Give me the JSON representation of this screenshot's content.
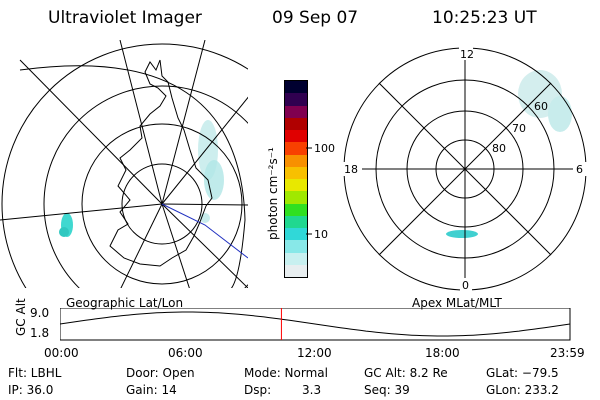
{
  "header": {
    "instrument": "Ultraviolet Imager",
    "date": "09 Sep 07",
    "time": "10:25:23 UT"
  },
  "left_panel": {
    "label": "Geographic Lat/Lon"
  },
  "right_panel": {
    "label": "Apex MLat/MLT",
    "mlt_labels": {
      "top": "12",
      "bottom": "0",
      "left": "18",
      "right": "6"
    },
    "lat_labels": [
      "60",
      "70",
      "80"
    ]
  },
  "colorbar": {
    "unit_label": "photon cm⁻²s⁻¹",
    "ticks": [
      "100",
      "10"
    ],
    "colors": [
      "#e8eef0",
      "#c8f0f0",
      "#88e8e8",
      "#30d8d8",
      "#20d890",
      "#30e020",
      "#a0e800",
      "#e8e800",
      "#f8c000",
      "#f89000",
      "#f84000",
      "#e00000",
      "#b00000",
      "#800050",
      "#300050",
      "#000030"
    ]
  },
  "timeline": {
    "axis_label": "GC Alt",
    "y_ticks": [
      "9.0",
      "1.8"
    ],
    "x_ticks": [
      "00:00",
      "06:00",
      "12:00",
      "18:00",
      "23:59"
    ],
    "current_marker_hours": 10.42,
    "marker_color": "#ff0000"
  },
  "info": {
    "filter": "Flt: LBHL",
    "ip": "IP: 36.0",
    "door": "Door: Open",
    "gain": "Gain: 14",
    "mode": "Mode: Normal",
    "dsp_label": "Dsp:",
    "dsp_value": "3.3",
    "gc_alt": "GC Alt: 8.2 Re",
    "seq": "Seq: 39",
    "glat": "GLat: −79.5",
    "glon": "GLon: 233.2"
  }
}
